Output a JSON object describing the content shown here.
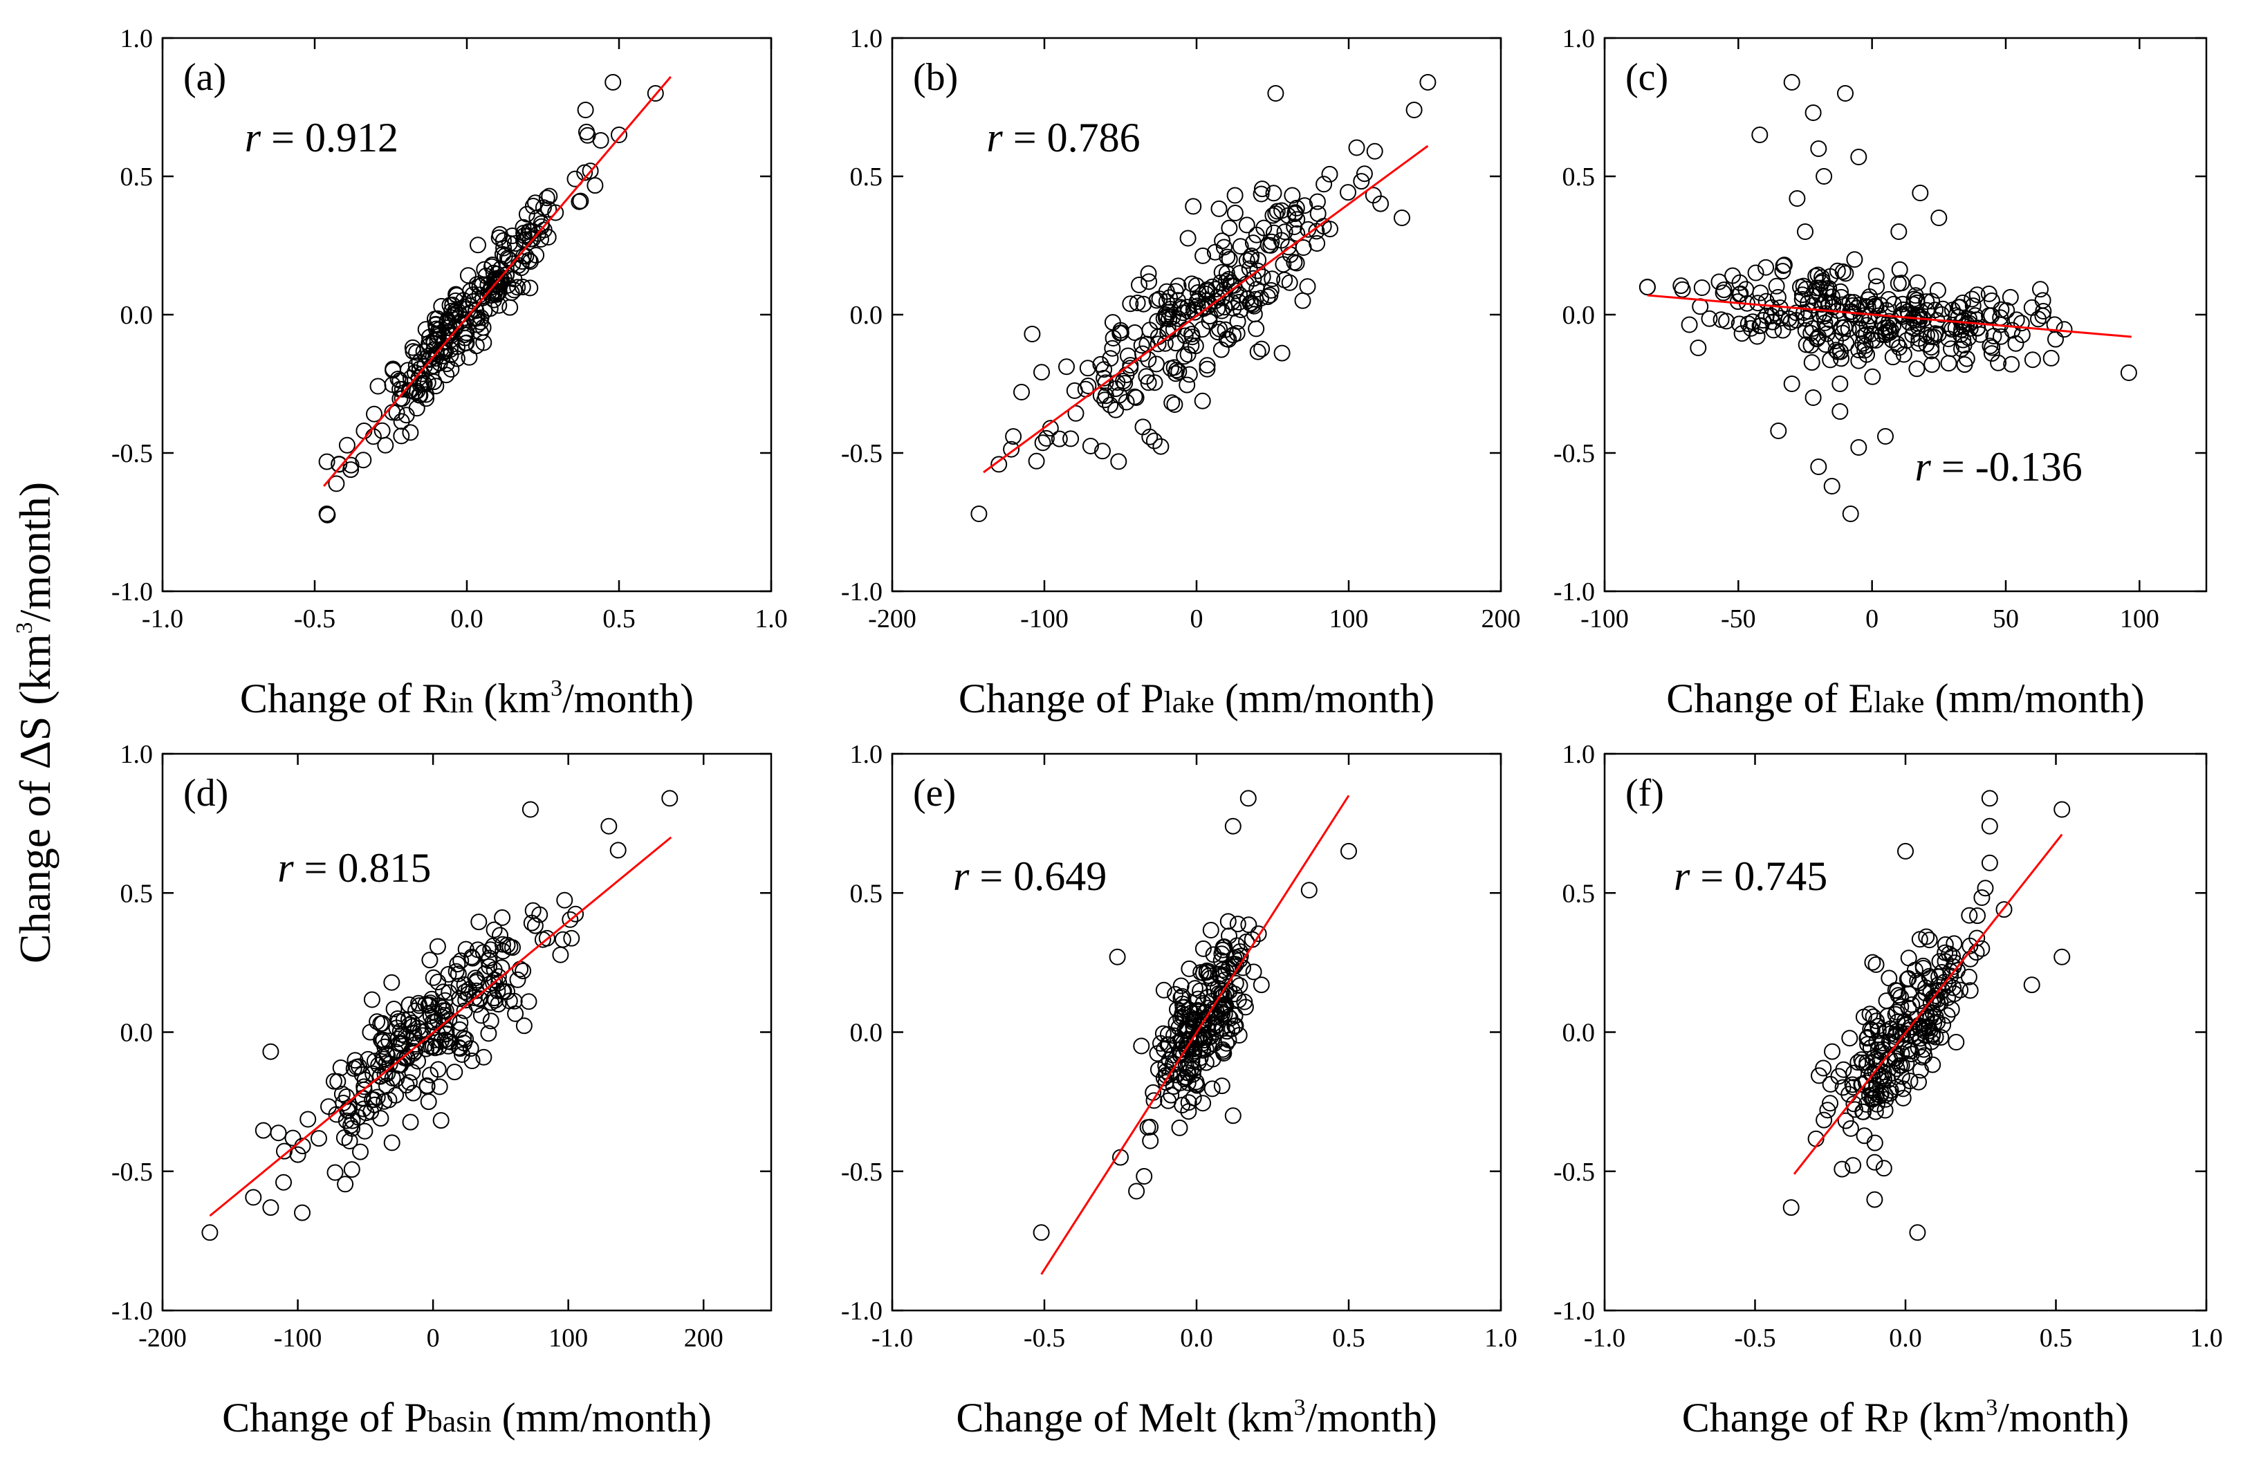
{
  "figure": {
    "ylabel_prefix": "Change of ΔS (km",
    "ylabel_sup": "3",
    "ylabel_suffix": "/month)"
  },
  "chart_data": [
    {
      "type": "scatter",
      "panel": "(a)",
      "xlabel": {
        "prefix": "Change of R",
        "sub": "in",
        "mid": " (km",
        "sup": "3",
        "suffix": "/month)"
      },
      "xlim": [
        -1.0,
        1.0
      ],
      "ylim": [
        -1.0,
        1.0
      ],
      "xticks": [
        -1.0,
        -0.5,
        0.0,
        0.5,
        1.0
      ],
      "xtick_labels": [
        "-1.0",
        "-0.5",
        "0.0",
        "0.5",
        "1.0"
      ],
      "yticks": [
        -1.0,
        -0.5,
        0.0,
        0.5,
        1.0
      ],
      "ytick_labels": [
        "-1.0",
        "-0.5",
        "0.0",
        "0.5",
        "1.0"
      ],
      "r_symbol": "r",
      "r_text": " = 0.912",
      "r_anchor": [
        -0.73,
        0.59
      ],
      "fit_line": [
        [
          -0.47,
          -0.62
        ],
        [
          0.67,
          0.86
        ]
      ],
      "gen": {
        "n": 260,
        "xmean": 0.0,
        "xsd": 0.17,
        "xmin": -0.46,
        "xmax": 0.62,
        "slope": 1.3,
        "intercept": 0.0,
        "noise": 0.075,
        "seed": 11
      },
      "extra_points": [
        [
          -0.46,
          -0.72
        ],
        [
          0.62,
          0.8
        ],
        [
          0.48,
          0.84
        ],
        [
          0.5,
          0.65
        ],
        [
          0.39,
          0.74
        ],
        [
          0.44,
          0.63
        ],
        [
          -0.42,
          -0.54
        ]
      ]
    },
    {
      "type": "scatter",
      "panel": "(b)",
      "xlabel": {
        "prefix": "Change of P",
        "sub": "lake",
        "mid": " (mm/month)",
        "sup": "",
        "suffix": ""
      },
      "xlim": [
        -200,
        200
      ],
      "ylim": [
        -1.0,
        1.0
      ],
      "xticks": [
        -200,
        -100,
        0,
        100,
        200
      ],
      "xtick_labels": [
        "-200",
        "-100",
        "0",
        "100",
        "200"
      ],
      "yticks": [
        -1.0,
        -0.5,
        0.0,
        0.5,
        1.0
      ],
      "ytick_labels": [
        "-1.0",
        "-0.5",
        "0.0",
        "0.5",
        "1.0"
      ],
      "r_symbol": "r",
      "r_text": " = 0.786",
      "r_anchor": [
        -138,
        0.59
      ],
      "fit_line": [
        [
          -140,
          -0.57
        ],
        [
          152,
          0.61
        ]
      ],
      "gen": {
        "n": 260,
        "xmean": 0,
        "xsd": 48,
        "xmin": -140,
        "xmax": 150,
        "slope": 0.0039,
        "intercept": 0.0,
        "noise": 0.13,
        "seed": 23
      },
      "extra_points": [
        [
          -143,
          -0.72
        ],
        [
          152,
          0.84
        ],
        [
          52,
          0.8
        ],
        [
          143,
          0.74
        ],
        [
          135,
          0.35
        ],
        [
          -108,
          -0.07
        ],
        [
          -115,
          -0.28
        ]
      ]
    },
    {
      "type": "scatter",
      "panel": "(c)",
      "xlabel": {
        "prefix": "Change of E",
        "sub": "lake",
        "mid": " (mm/month)",
        "sup": "",
        "suffix": ""
      },
      "xlim": [
        -100,
        125
      ],
      "ylim": [
        -1.0,
        1.0
      ],
      "xticks": [
        -100,
        -50,
        0,
        50,
        100
      ],
      "xtick_labels": [
        "-100",
        "-50",
        "0",
        "50",
        "100"
      ],
      "yticks": [
        -1.0,
        -0.5,
        0.0,
        0.5,
        1.0
      ],
      "ytick_labels": [
        "-1.0",
        "-0.5",
        "0.0",
        "0.5",
        "1.0"
      ],
      "r_symbol": "r",
      "r_text": " = -0.136",
      "r_anchor": [
        16,
        -0.6
      ],
      "fit_line": [
        [
          -84,
          0.07
        ],
        [
          97,
          -0.08
        ]
      ],
      "gen": {
        "n": 290,
        "xmean": 0,
        "xsd": 30,
        "xmin": -84,
        "xmax": 97,
        "slope": -0.0008,
        "intercept": 0.0,
        "noise": 0.08,
        "seed": 37
      },
      "extra_points": [
        [
          -30,
          0.84
        ],
        [
          -22,
          0.73
        ],
        [
          -10,
          0.8
        ],
        [
          -42,
          0.65
        ],
        [
          -20,
          0.6
        ],
        [
          -5,
          0.57
        ],
        [
          18,
          0.44
        ],
        [
          -28,
          0.42
        ],
        [
          -15,
          -0.62
        ],
        [
          -8,
          -0.72
        ],
        [
          -20,
          -0.55
        ],
        [
          -35,
          -0.42
        ],
        [
          -5,
          -0.48
        ],
        [
          5,
          -0.44
        ],
        [
          -12,
          -0.35
        ],
        [
          -22,
          -0.3
        ],
        [
          96,
          -0.21
        ],
        [
          -84,
          0.1
        ],
        [
          -65,
          -0.12
        ],
        [
          25,
          0.35
        ],
        [
          -25,
          0.3
        ],
        [
          10,
          0.3
        ],
        [
          -12,
          -0.25
        ],
        [
          -18,
          0.5
        ],
        [
          -30,
          -0.25
        ]
      ]
    },
    {
      "type": "scatter",
      "panel": "(d)",
      "xlabel": {
        "prefix": "Change of P",
        "sub": "basin",
        "mid": " (mm/month)",
        "sup": "",
        "suffix": ""
      },
      "xlim": [
        -200,
        250
      ],
      "ylim": [
        -1.0,
        1.0
      ],
      "xticks": [
        -200,
        -100,
        0,
        100,
        200
      ],
      "xtick_labels": [
        "-200",
        "-100",
        "0",
        "100",
        "200"
      ],
      "yticks": [
        -1.0,
        -0.5,
        0.0,
        0.5,
        1.0
      ],
      "ytick_labels": [
        "-1.0",
        "-0.5",
        "0.0",
        "0.5",
        "1.0"
      ],
      "r_symbol": "r",
      "r_text": " = 0.815",
      "r_anchor": [
        -115,
        0.54
      ],
      "fit_line": [
        [
          -165,
          -0.66
        ],
        [
          176,
          0.7
        ]
      ],
      "gen": {
        "n": 270,
        "xmean": 0,
        "xsd": 50,
        "xmin": -165,
        "xmax": 175,
        "slope": 0.004,
        "intercept": 0.0,
        "noise": 0.12,
        "seed": 53
      },
      "extra_points": [
        [
          -165,
          -0.72
        ],
        [
          175,
          0.84
        ],
        [
          130,
          0.74
        ],
        [
          72,
          0.8
        ],
        [
          -120,
          -0.63
        ],
        [
          -120,
          -0.07
        ],
        [
          -100,
          -0.44
        ]
      ]
    },
    {
      "type": "scatter",
      "panel": "(e)",
      "xlabel": {
        "prefix": "Change of Melt (km",
        "sub": "",
        "mid": "",
        "sup": "3",
        "suffix": "/month)"
      },
      "xlim": [
        -1.0,
        1.0
      ],
      "ylim": [
        -1.0,
        1.0
      ],
      "xticks": [
        -1.0,
        -0.5,
        0.0,
        0.5,
        1.0
      ],
      "xtick_labels": [
        "-1.0",
        "-0.5",
        "0.0",
        "0.5",
        "1.0"
      ],
      "yticks": [
        -1.0,
        -0.5,
        0.0,
        0.5,
        1.0
      ],
      "ytick_labels": [
        "-1.0",
        "-0.5",
        "0.0",
        "0.5",
        "1.0"
      ],
      "r_symbol": "r",
      "r_text": " = 0.649",
      "r_anchor": [
        -0.8,
        0.51
      ],
      "fit_line": [
        [
          -0.51,
          -0.87
        ],
        [
          0.5,
          0.85
        ]
      ],
      "gen": {
        "n": 230,
        "xmean": 0.02,
        "xsd": 0.09,
        "xmin": -0.3,
        "xmax": 0.3,
        "slope": 1.45,
        "intercept": 0.0,
        "noise": 0.13,
        "seed": 71
      },
      "extra_points": [
        [
          -0.51,
          -0.72
        ],
        [
          0.5,
          0.65
        ],
        [
          0.37,
          0.51
        ],
        [
          0.17,
          0.84
        ],
        [
          0.12,
          0.74
        ],
        [
          -0.26,
          0.27
        ],
        [
          0.12,
          -0.3
        ],
        [
          -0.25,
          -0.45
        ]
      ]
    },
    {
      "type": "scatter",
      "panel": "(f)",
      "xlabel": {
        "prefix": "Change of R",
        "sub": "P",
        "mid": " (km",
        "sup": "3",
        "suffix": "/month)"
      },
      "xlim": [
        -1.0,
        1.0
      ],
      "ylim": [
        -1.0,
        1.0
      ],
      "xticks": [
        -1.0,
        -0.5,
        0.0,
        0.5,
        1.0
      ],
      "xtick_labels": [
        "-1.0",
        "-0.5",
        "0.0",
        "0.5",
        "1.0"
      ],
      "yticks": [
        -1.0,
        -0.5,
        0.0,
        0.5,
        1.0
      ],
      "ytick_labels": [
        "-1.0",
        "-0.5",
        "0.0",
        "0.5",
        "1.0"
      ],
      "r_symbol": "r",
      "r_text": " = 0.745",
      "r_anchor": [
        -0.77,
        0.51
      ],
      "fit_line": [
        [
          -0.37,
          -0.51
        ],
        [
          0.52,
          0.71
        ]
      ],
      "gen": {
        "n": 240,
        "xmean": 0.0,
        "xsd": 0.12,
        "xmin": -0.36,
        "xmax": 0.52,
        "slope": 1.3,
        "intercept": 0.0,
        "noise": 0.13,
        "seed": 89
      },
      "extra_points": [
        [
          -0.38,
          -0.63
        ],
        [
          0.52,
          0.8
        ],
        [
          0.52,
          0.27
        ],
        [
          0.28,
          0.84
        ],
        [
          0.28,
          0.74
        ],
        [
          0.04,
          -0.72
        ],
        [
          0.0,
          0.65
        ],
        [
          0.42,
          0.17
        ]
      ]
    }
  ]
}
